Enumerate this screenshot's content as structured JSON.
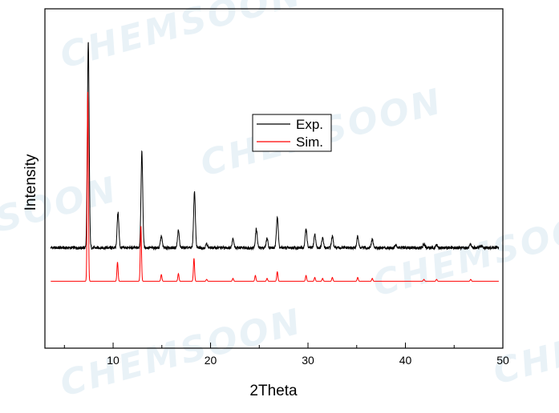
{
  "watermark": "CHEMSOON",
  "chart_data": {
    "type": "line",
    "xlabel": "2Theta",
    "ylabel": "Intensity",
    "xlim": [
      3,
      50
    ],
    "ylim": [
      -45,
      310
    ],
    "xticks": [
      "10",
      "20",
      "30",
      "40",
      "50"
    ],
    "yticks_shown": false,
    "legend": {
      "placement": "center-right",
      "entries": [
        {
          "name": "Exp.",
          "color": "#000000"
        },
        {
          "name": "Sim.",
          "color": "#ff0000"
        }
      ]
    },
    "series": [
      {
        "name": "Exp.",
        "color": "#000000",
        "baseline": 60,
        "peaks": [
          {
            "x": 7.45,
            "y": 215
          },
          {
            "x": 10.5,
            "y": 37
          },
          {
            "x": 12.95,
            "y": 100
          },
          {
            "x": 14.95,
            "y": 12
          },
          {
            "x": 16.7,
            "y": 18
          },
          {
            "x": 18.35,
            "y": 58
          },
          {
            "x": 19.6,
            "y": 4
          },
          {
            "x": 22.3,
            "y": 10
          },
          {
            "x": 24.7,
            "y": 20
          },
          {
            "x": 25.8,
            "y": 10
          },
          {
            "x": 26.85,
            "y": 33
          },
          {
            "x": 29.8,
            "y": 20
          },
          {
            "x": 30.7,
            "y": 14
          },
          {
            "x": 31.5,
            "y": 10
          },
          {
            "x": 32.5,
            "y": 12
          },
          {
            "x": 35.1,
            "y": 12
          },
          {
            "x": 36.6,
            "y": 9
          },
          {
            "x": 39.0,
            "y": 3
          },
          {
            "x": 41.9,
            "y": 4
          },
          {
            "x": 43.2,
            "y": 3
          },
          {
            "x": 46.7,
            "y": 3
          },
          {
            "x": 47.8,
            "y": 2
          }
        ]
      },
      {
        "name": "Sim.",
        "color": "#ff0000",
        "baseline": 25,
        "peaks": [
          {
            "x": 7.4,
            "y": 198
          },
          {
            "x": 10.45,
            "y": 20
          },
          {
            "x": 12.85,
            "y": 58
          },
          {
            "x": 14.95,
            "y": 7
          },
          {
            "x": 16.7,
            "y": 8
          },
          {
            "x": 18.3,
            "y": 24
          },
          {
            "x": 19.6,
            "y": 2
          },
          {
            "x": 22.3,
            "y": 3
          },
          {
            "x": 24.6,
            "y": 6
          },
          {
            "x": 25.8,
            "y": 3
          },
          {
            "x": 26.85,
            "y": 10
          },
          {
            "x": 29.8,
            "y": 6
          },
          {
            "x": 30.7,
            "y": 4
          },
          {
            "x": 31.5,
            "y": 3
          },
          {
            "x": 32.5,
            "y": 4
          },
          {
            "x": 35.1,
            "y": 4
          },
          {
            "x": 36.6,
            "y": 3
          },
          {
            "x": 41.9,
            "y": 2
          },
          {
            "x": 43.2,
            "y": 2
          },
          {
            "x": 46.7,
            "y": 2
          }
        ]
      }
    ]
  }
}
